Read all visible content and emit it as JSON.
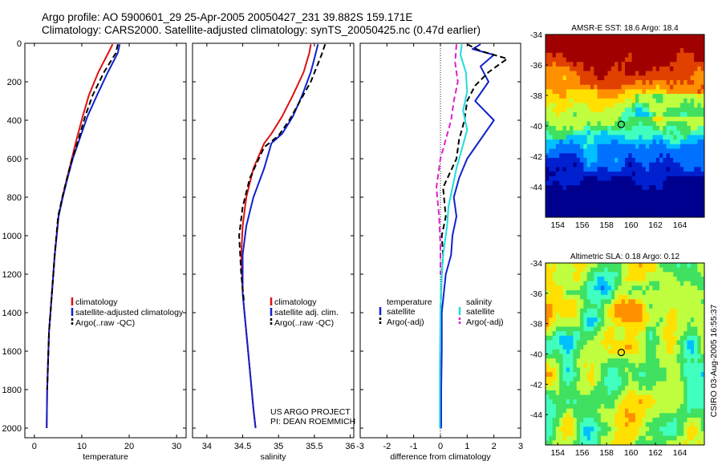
{
  "header": {
    "line1": "Argo profile: AO 5900601_29 25-Apr-2005 20050427_231 39.882S 159.171E",
    "line2": "Climatology: CARS2000. Satellite-adjusted climatology: synTS_20050425.nc (0.47d earlier)"
  },
  "colors": {
    "climatology": "#dd1111",
    "satellite": "#1122cc",
    "argo": "#000000",
    "salinity": "#22dddd",
    "salinity_adj": "#dd22cc"
  },
  "chart_data": [
    {
      "type": "line",
      "xlabel": "temperature",
      "ylabel": "",
      "xlim": [
        -2,
        32
      ],
      "ylim": [
        2050,
        0
      ],
      "xticks": [
        0,
        10,
        20,
        30
      ],
      "yticks": [
        0,
        200,
        400,
        600,
        800,
        1000,
        1200,
        1400,
        1600,
        1800,
        2000
      ],
      "legend_placement": "center-right",
      "series": [
        {
          "name": "climatology",
          "color_key": "climatology",
          "dash": false,
          "x": [
            16.5,
            15.6,
            13.5,
            11.5,
            10.2,
            8.9,
            7.9,
            6.9,
            5.9,
            5.1,
            4.3,
            3.7,
            3.1,
            2.7,
            2.6
          ],
          "y": [
            5,
            50,
            150,
            270,
            380,
            500,
            600,
            700,
            800,
            900,
            1100,
            1300,
            1500,
            1800,
            2000
          ]
        },
        {
          "name": "satellite-adjusted climatology",
          "color_key": "satellite",
          "dash": false,
          "x": [
            18.0,
            17.6,
            15.5,
            13.2,
            11.2,
            9.5,
            8.1,
            7.0,
            6.0,
            5.1,
            4.3,
            3.7,
            3.1,
            2.7,
            2.6
          ],
          "y": [
            5,
            50,
            150,
            270,
            380,
            500,
            600,
            700,
            800,
            900,
            1100,
            1300,
            1500,
            1800,
            2000
          ]
        },
        {
          "name": "Argo(..raw -QC)",
          "color_key": "argo",
          "dash": true,
          "x": [
            17.6,
            17.2,
            14.7,
            12.3,
            10.7,
            9.3,
            8.0,
            6.9,
            5.9,
            5.0,
            4.3,
            3.7,
            3.1,
            2.7
          ],
          "y": [
            5,
            50,
            150,
            270,
            380,
            500,
            600,
            700,
            800,
            900,
            1100,
            1300,
            1500,
            1800
          ]
        }
      ]
    },
    {
      "type": "line",
      "xlabel": "salinity",
      "ylabel": "",
      "xlim": [
        33.8,
        36.05
      ],
      "ylim": [
        2050,
        0
      ],
      "xticks": [
        34,
        34.5,
        35,
        35.5,
        36
      ],
      "legend_placement": "center-right",
      "series": [
        {
          "name": "climatology",
          "color_key": "climatology",
          "dash": false,
          "x": [
            35.45,
            35.43,
            35.35,
            35.2,
            35.05,
            34.9,
            34.8,
            34.65,
            34.55,
            34.5,
            34.48,
            34.5,
            34.55,
            34.6,
            34.65,
            34.68
          ],
          "y": [
            5,
            50,
            150,
            270,
            380,
            470,
            520,
            650,
            800,
            950,
            1100,
            1300,
            1500,
            1700,
            1900,
            2000
          ]
        },
        {
          "name": "satellite adj. clim.",
          "color_key": "satellite",
          "dash": false,
          "x": [
            35.55,
            35.52,
            35.45,
            35.33,
            35.2,
            35.05,
            34.9,
            34.8,
            34.65,
            34.55,
            34.5,
            34.5,
            34.55,
            34.6,
            34.65,
            34.68
          ],
          "y": [
            5,
            50,
            150,
            270,
            380,
            470,
            520,
            650,
            800,
            950,
            1100,
            1300,
            1500,
            1700,
            1900,
            2000
          ]
        },
        {
          "name": "Argo(..raw -QC)",
          "color_key": "argo",
          "dash": true,
          "x": [
            35.65,
            35.6,
            35.45,
            35.3,
            35.15,
            35.0,
            34.8,
            34.6,
            34.5,
            34.45,
            34.48,
            34.52
          ],
          "y": [
            5,
            60,
            200,
            300,
            400,
            480,
            540,
            700,
            850,
            1000,
            1200,
            1350
          ]
        }
      ],
      "annotation_lines": [
        "US ARGO PROJECT",
        "PI: DEAN ROEMMICH"
      ]
    },
    {
      "type": "line",
      "xlabel": "difference from climatology",
      "ylabel": "",
      "xlim": [
        -3,
        3
      ],
      "ylim": [
        2050,
        0
      ],
      "xticks": [
        -3,
        -2,
        -1,
        0,
        1,
        2,
        3
      ],
      "zero_line": "dotted",
      "legend_placement": "center",
      "legend_groups": [
        {
          "title": "temperature",
          "items": [
            {
              "name": "satellite",
              "color_key": "satellite",
              "dash": false
            },
            {
              "name": "Argo(-adj)",
              "color_key": "argo",
              "dash": true
            }
          ]
        },
        {
          "title": "salinity",
          "items": [
            {
              "name": "satellite",
              "color_key": "salinity",
              "dash": false
            },
            {
              "name": "Argo(-adj)",
              "color_key": "salinity_adj",
              "dash": true
            }
          ]
        }
      ],
      "series": [
        {
          "name": "temperature satellite",
          "color_key": "satellite",
          "dash": false,
          "x": [
            1.5,
            1.2,
            2.0,
            1.5,
            1.8,
            1.3,
            2.0,
            1.5,
            1.0,
            0.7,
            0.5,
            0.6,
            0.45,
            0.4,
            0.2,
            0.05,
            0.05,
            0.03,
            0.03
          ],
          "y": [
            5,
            30,
            60,
            120,
            200,
            300,
            400,
            500,
            600,
            700,
            800,
            900,
            1000,
            1100,
            1200,
            1400,
            1600,
            1800,
            2000
          ]
        },
        {
          "name": "temperature Argo(-adj)",
          "color_key": "argo",
          "dash": true,
          "x": [
            1.0,
            1.5,
            2.5,
            1.8,
            1.3,
            1.0,
            0.9,
            0.7,
            0.6,
            0.1,
            0.2,
            0.05,
            0.1,
            0.05,
            0.0
          ],
          "y": [
            5,
            40,
            80,
            150,
            220,
            300,
            400,
            500,
            600,
            750,
            900,
            1000,
            1100,
            1200,
            1400
          ]
        },
        {
          "name": "salinity satellite",
          "color_key": "salinity",
          "dash": false,
          "x": [
            0.8,
            0.75,
            0.95,
            1.0,
            0.85,
            1.0,
            0.8,
            0.6,
            0.45,
            0.3,
            0.25,
            0.1,
            0.05,
            0.0,
            -0.02,
            -0.02
          ],
          "y": [
            5,
            60,
            150,
            250,
            350,
            450,
            550,
            650,
            750,
            850,
            950,
            1100,
            1200,
            1400,
            1700,
            2000
          ]
        },
        {
          "name": "salinity Argo(-adj)",
          "color_key": "salinity_adj",
          "dash": true,
          "x": [
            0.6,
            0.55,
            0.65,
            0.5,
            0.4,
            0.2,
            0.0,
            -0.15,
            -0.05,
            0.0,
            0.0
          ],
          "y": [
            5,
            100,
            200,
            300,
            400,
            500,
            600,
            750,
            900,
            1050,
            1200
          ]
        }
      ]
    },
    {
      "type": "heatmap",
      "title": "AMSR-E SST: 18.6  Argo: 18.4",
      "xlim": [
        153,
        166
      ],
      "ylim": [
        -46,
        -34
      ],
      "xticks": [
        154,
        156,
        158,
        160,
        162,
        164
      ],
      "yticks": [
        -34,
        -36,
        -38,
        -40,
        -42,
        -44
      ],
      "marker": {
        "lon": 159.2,
        "lat": -39.9
      },
      "palette": [
        "#00008f",
        "#0020d0",
        "#0070ff",
        "#00c0ff",
        "#40ffbf",
        "#40e060",
        "#bfff40",
        "#ffe000",
        "#ff9000",
        "#e04000",
        "#a00000"
      ]
    },
    {
      "type": "heatmap",
      "title": "Altimetric SLA: 0.18  Argo: 0.12",
      "xlim": [
        153,
        166
      ],
      "ylim": [
        -46,
        -34
      ],
      "xticks": [
        154,
        156,
        158,
        160,
        162,
        164
      ],
      "yticks": [
        -34,
        -36,
        -38,
        -40,
        -42,
        -44
      ],
      "marker": {
        "lon": 159.2,
        "lat": -39.9
      },
      "palette": [
        "#00008f",
        "#0020d0",
        "#0070ff",
        "#00c0ff",
        "#40ffbf",
        "#40e060",
        "#bfff40",
        "#ffe000",
        "#ff9000",
        "#e04000",
        "#a00000"
      ]
    }
  ],
  "footer": {
    "credit": "CSIRO 03-Aug-2005 16:55:37"
  }
}
